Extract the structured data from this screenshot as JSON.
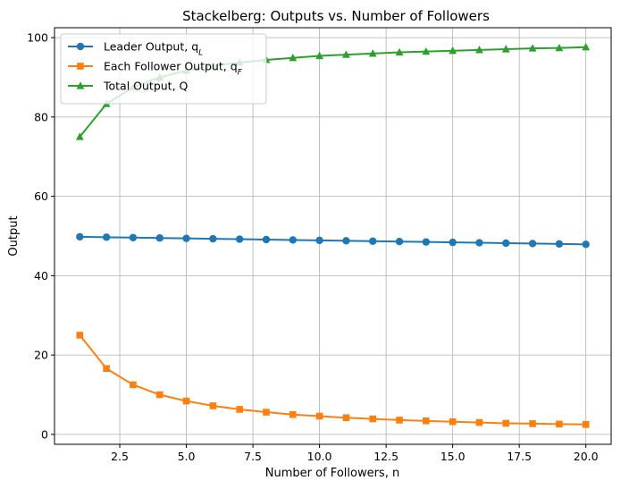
{
  "chart_data": {
    "type": "line",
    "title": "Stackelberg: Outputs vs. Number of Followers",
    "xlabel": "Number of Followers, n",
    "ylabel": "Output",
    "xlim": [
      0.05,
      20.95
    ],
    "ylim": [
      -2.5,
      102.5
    ],
    "xticks": [
      2.5,
      5.0,
      7.5,
      10.0,
      12.5,
      15.0,
      17.5,
      20.0
    ],
    "xtick_labels": [
      "2.5",
      "5.0",
      "7.5",
      "10.0",
      "12.5",
      "15.0",
      "17.5",
      "20.0"
    ],
    "yticks": [
      0,
      20,
      40,
      60,
      80,
      100
    ],
    "ytick_labels": [
      "0",
      "20",
      "40",
      "60",
      "80",
      "100"
    ],
    "grid": true,
    "legend_position": "top-left",
    "x": [
      1,
      2,
      3,
      4,
      5,
      6,
      7,
      8,
      9,
      10,
      11,
      12,
      13,
      14,
      15,
      16,
      17,
      18,
      19,
      20
    ],
    "series": [
      {
        "name": "Leader Output, q_L",
        "legend_main": "Leader Output, q",
        "legend_sub": "L",
        "color": "#1f77b4",
        "marker": "circle",
        "values": [
          49.8,
          49.7,
          49.6,
          49.5,
          49.4,
          49.3,
          49.2,
          49.1,
          49.0,
          48.9,
          48.8,
          48.7,
          48.6,
          48.5,
          48.4,
          48.3,
          48.2,
          48.1,
          48.0,
          47.9
        ]
      },
      {
        "name": "Each Follower Output, q_F",
        "legend_main": "Each Follower Output, q",
        "legend_sub": "F",
        "color": "#ff7f0e",
        "marker": "square",
        "values": [
          25.0,
          16.6,
          12.5,
          10.0,
          8.4,
          7.2,
          6.3,
          5.6,
          5.0,
          4.6,
          4.2,
          3.9,
          3.6,
          3.4,
          3.2,
          3.0,
          2.8,
          2.7,
          2.6,
          2.5
        ]
      },
      {
        "name": "Total Output, Q",
        "legend_main": "Total Output, Q",
        "legend_sub": "",
        "color": "#2ca02c",
        "marker": "triangle",
        "values": [
          75.0,
          83.3,
          87.5,
          90.0,
          91.7,
          92.9,
          93.7,
          94.4,
          94.9,
          95.4,
          95.7,
          96.0,
          96.3,
          96.5,
          96.7,
          96.9,
          97.1,
          97.3,
          97.4,
          97.6
        ]
      }
    ]
  }
}
